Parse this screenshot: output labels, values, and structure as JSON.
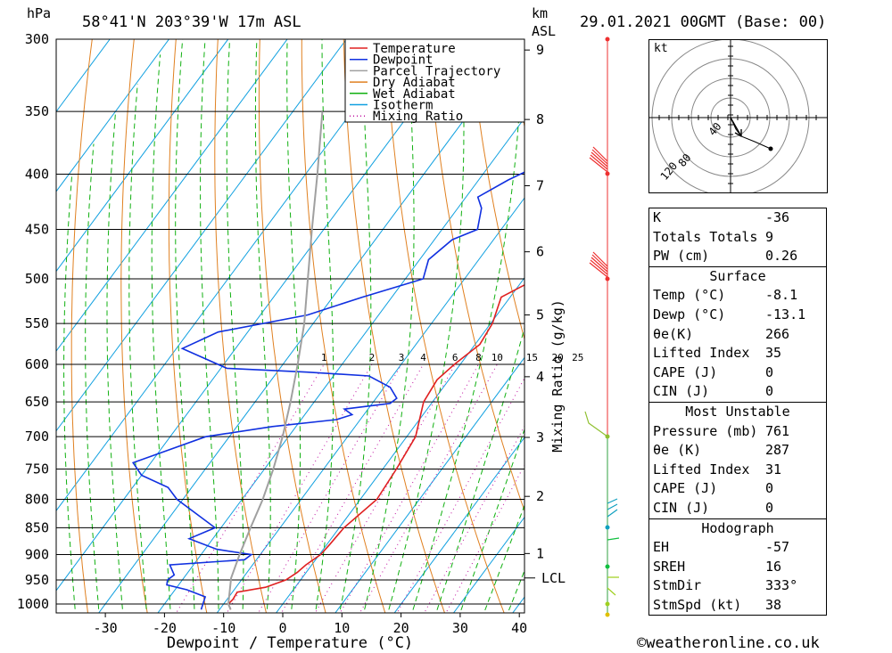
{
  "header": {
    "location": "58°41'N 203°39'W 17m ASL",
    "datetime": "29.01.2021 00GMT (Base: 00)",
    "pressure_unit": "hPa",
    "height_unit_top": "km",
    "height_unit_bottom": "ASL"
  },
  "legend": {
    "items": [
      {
        "label": "Temperature",
        "color": "#e02020",
        "style": "solid"
      },
      {
        "label": "Dewpoint",
        "color": "#1030e0",
        "style": "solid"
      },
      {
        "label": "Parcel Trajectory",
        "color": "#a0a0a0",
        "style": "solid"
      },
      {
        "label": "Dry Adiabat",
        "color": "#e08020",
        "style": "solid"
      },
      {
        "label": "Wet Adiabat",
        "color": "#10b010",
        "style": "solid"
      },
      {
        "label": "Isotherm",
        "color": "#10a0e0",
        "style": "solid"
      },
      {
        "label": "Mixing Ratio",
        "color": "#c010a0",
        "style": "dotted"
      }
    ]
  },
  "chart_data": {
    "type": "line",
    "title": "58°41'N 203°39'W 17m ASL",
    "xlabel": "Dewpoint / Temperature (°C)",
    "ylabel": "hPa",
    "right_label": "Mixing Ratio (g/kg)",
    "x_ticks": [
      -30,
      -20,
      -10,
      0,
      10,
      20,
      30,
      40
    ],
    "pressure_levels": [
      300,
      350,
      400,
      450,
      500,
      550,
      600,
      650,
      700,
      750,
      800,
      850,
      900,
      950,
      1000
    ],
    "km_ticks": [
      {
        "km": "1",
        "p": 898
      },
      {
        "km": "2",
        "p": 795
      },
      {
        "km": "3",
        "p": 701
      },
      {
        "km": "4",
        "p": 616
      },
      {
        "km": "5",
        "p": 540
      },
      {
        "km": "6",
        "p": 472
      },
      {
        "km": "7",
        "p": 410
      },
      {
        "km": "8",
        "p": 356
      },
      {
        "km": "9",
        "p": 307
      }
    ],
    "lcl": {
      "label": "LCL",
      "p": 946
    },
    "mixing_ratio_labels": [
      "1",
      "2",
      "3",
      "4",
      "6",
      "8",
      "10",
      "15",
      "20",
      "25"
    ],
    "series": [
      {
        "name": "Temperature",
        "color": "#e02020",
        "points": [
          [
            1012,
            -8.1
          ],
          [
            1000,
            -9.2
          ],
          [
            990,
            -9.0
          ],
          [
            975,
            -9.2
          ],
          [
            965,
            -5.0
          ],
          [
            950,
            -2.5
          ],
          [
            935,
            -1.5
          ],
          [
            920,
            -1.0
          ],
          [
            900,
            0.2
          ],
          [
            880,
            0.5
          ],
          [
            850,
            0.8
          ],
          [
            800,
            2.8
          ],
          [
            750,
            2.3
          ],
          [
            700,
            1.5
          ],
          [
            650,
            -1.5
          ],
          [
            620,
            -2.0
          ],
          [
            600,
            -1.0
          ],
          [
            575,
            0.8
          ],
          [
            550,
            0.3
          ],
          [
            520,
            -1.5
          ],
          [
            505,
            1.2
          ],
          [
            490,
            4.5
          ],
          [
            470,
            4.0
          ],
          [
            450,
            2.8
          ],
          [
            430,
            1.8
          ],
          [
            400,
            -0.5
          ],
          [
            380,
            -2.0
          ],
          [
            360,
            -3.5
          ],
          [
            350,
            -3.5
          ],
          [
            340,
            -3.8
          ],
          [
            320,
            -4.6
          ],
          [
            300,
            -7.0
          ]
        ]
      },
      {
        "name": "Dewpoint",
        "color": "#1030e0",
        "points": [
          [
            1012,
            -13.1
          ],
          [
            1000,
            -13.5
          ],
          [
            985,
            -14.0
          ],
          [
            970,
            -18.0
          ],
          [
            960,
            -22.0
          ],
          [
            950,
            -22.5
          ],
          [
            940,
            -22.0
          ],
          [
            920,
            -24.0
          ],
          [
            910,
            -12.0
          ],
          [
            900,
            -11.5
          ],
          [
            890,
            -18.0
          ],
          [
            870,
            -24.0
          ],
          [
            850,
            -21.0
          ],
          [
            800,
            -31.0
          ],
          [
            780,
            -34.0
          ],
          [
            760,
            -40.0
          ],
          [
            750,
            -41.5
          ],
          [
            740,
            -43.0
          ],
          [
            700,
            -34.0
          ],
          [
            685,
            -24.0
          ],
          [
            675,
            -14.0
          ],
          [
            668,
            -12.0
          ],
          [
            660,
            -14.0
          ],
          [
            652,
            -7.0
          ],
          [
            645,
            -6.5
          ],
          [
            630,
            -9.0
          ],
          [
            615,
            -14.0
          ],
          [
            610,
            -25.0
          ],
          [
            605,
            -39.0
          ],
          [
            580,
            -49.0
          ],
          [
            560,
            -45.0
          ],
          [
            540,
            -32.0
          ],
          [
            520,
            -25.0
          ],
          [
            500,
            -17.0
          ],
          [
            480,
            -18.5
          ],
          [
            460,
            -17.0
          ],
          [
            450,
            -14.0
          ],
          [
            430,
            -16.0
          ],
          [
            420,
            -18.0
          ],
          [
            405,
            -15.0
          ],
          [
            390,
            -11.0
          ],
          [
            380,
            -9.0
          ],
          [
            365,
            -6.5
          ],
          [
            355,
            -6.5
          ],
          [
            345,
            -9.5
          ],
          [
            335,
            -14.0
          ],
          [
            330,
            -14.0
          ],
          [
            325,
            -15.0
          ],
          [
            320,
            -14.0
          ],
          [
            310,
            -12.0
          ],
          [
            300,
            -10.5
          ]
        ]
      },
      {
        "name": "Parcel Trajectory",
        "color": "#a0a0a0",
        "points": [
          [
            1012,
            -8.1
          ],
          [
            1000,
            -9.2
          ],
          [
            946,
            -12.0
          ],
          [
            900,
            -13.5
          ],
          [
            850,
            -15.0
          ],
          [
            800,
            -16.5
          ],
          [
            750,
            -18.5
          ],
          [
            700,
            -21.0
          ],
          [
            650,
            -24.0
          ],
          [
            600,
            -27.5
          ],
          [
            550,
            -31.5
          ],
          [
            500,
            -36.5
          ],
          [
            450,
            -42.0
          ],
          [
            400,
            -48.0
          ],
          [
            350,
            -55.0
          ]
        ]
      }
    ]
  },
  "hodograph": {
    "unit": "kt",
    "ring_labels": [
      "40",
      "80",
      "120"
    ]
  },
  "stability": {
    "k_label": "K",
    "k_value": "-36",
    "tt_label": "Totals Totals",
    "tt_value": "9",
    "pw_label": "PW (cm)",
    "pw_value": "0.26"
  },
  "surface": {
    "title": "Surface",
    "rows": [
      {
        "label": "Temp (°C)",
        "value": "-8.1"
      },
      {
        "label": "Dewp (°C)",
        "value": "-13.1"
      },
      {
        "label": "θe(K)",
        "value": "266"
      },
      {
        "label": "Lifted Index",
        "value": "35"
      },
      {
        "label": "CAPE (J)",
        "value": "0"
      },
      {
        "label": "CIN (J)",
        "value": "0"
      }
    ]
  },
  "most_unstable": {
    "title": "Most Unstable",
    "rows": [
      {
        "label": "Pressure (mb)",
        "value": "761"
      },
      {
        "label": "θe (K)",
        "value": "287"
      },
      {
        "label": "Lifted Index",
        "value": "31"
      },
      {
        "label": "CAPE (J)",
        "value": "0"
      },
      {
        "label": "CIN (J)",
        "value": "0"
      }
    ]
  },
  "hodo_table": {
    "title": "Hodograph",
    "rows": [
      {
        "label": "EH",
        "value": "-57"
      },
      {
        "label": "SREH",
        "value": "16"
      },
      {
        "label": "StmDir",
        "value": "333°"
      },
      {
        "label": "StmSpd (kt)",
        "value": "38"
      }
    ]
  },
  "footer": {
    "credit": "©weatheronline.co.uk"
  }
}
